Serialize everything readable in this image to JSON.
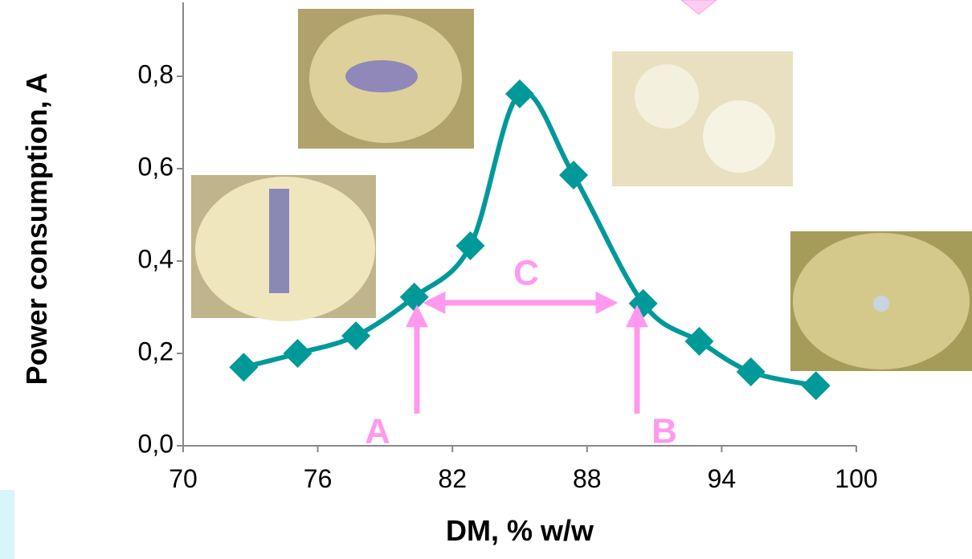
{
  "chart_data": {
    "type": "line",
    "x_label": "DM, % w/w",
    "y_label": "Power consumption, A",
    "xlim": [
      70,
      100
    ],
    "xticks": [
      70,
      76,
      82,
      88,
      94,
      100
    ],
    "ylim": [
      0,
      0.96
    ],
    "yticks": [
      {
        "value": 0,
        "label": "0,0"
      },
      {
        "value": 0.2,
        "label": "0,2"
      },
      {
        "value": 0.4,
        "label": "0,4"
      },
      {
        "value": 0.6,
        "label": "0,6"
      },
      {
        "value": 0.8,
        "label": "0,8"
      }
    ],
    "series": [
      {
        "color": "#009999",
        "x": [
          72.7,
          75.1,
          77.7,
          80.3,
          82.8,
          85.0,
          87.4,
          90.5,
          93.0,
          95.3,
          98.2
        ],
        "values": [
          0.17,
          0.2,
          0.238,
          0.322,
          0.433,
          0.762,
          0.586,
          0.308,
          0.226,
          0.16,
          0.13
        ]
      }
    ],
    "annotations": [
      "A",
      "B",
      "C"
    ]
  }
}
